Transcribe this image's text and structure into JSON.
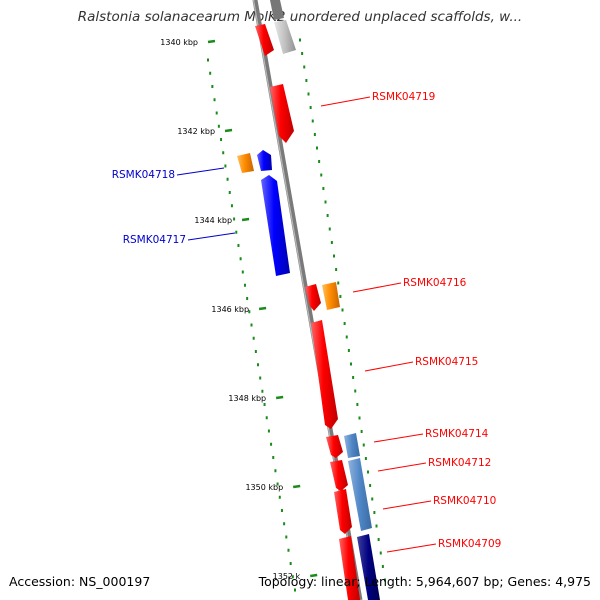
{
  "title": "Ralstonia solanacearum MolK2 unordered unplaced scaffolds, w...",
  "footer": {
    "accession": "Accession: NS_000197",
    "summary": "Topology: linear; Length: 5,964,607 bp; Genes: 4,975"
  },
  "colors": {
    "forward_gene": "#ff0000",
    "reverse_gene": "#0000ff",
    "orange_feature": "#ff8c00",
    "steelblue_feature": "#4f86c6",
    "navy_feature": "#000080",
    "gray_feature": "#c0c0c0",
    "backbone": "#808080",
    "tick": "#1a8c1a",
    "forward_label": "#ff0000",
    "reverse_label": "#0000cc"
  },
  "ruler": [
    {
      "label": "1340 kbp"
    },
    {
      "label": "1342 kbp"
    },
    {
      "label": "1344 kbp"
    },
    {
      "label": "1346 kbp"
    },
    {
      "label": "1348 kbp"
    },
    {
      "label": "1350 kbp"
    },
    {
      "label": "1352 k"
    }
  ],
  "gene_labels": [
    {
      "text": "RSMK04719",
      "strand": "forward"
    },
    {
      "text": "RSMK04718",
      "strand": "reverse"
    },
    {
      "text": "RSMK04717",
      "strand": "reverse"
    },
    {
      "text": "RSMK04716",
      "strand": "forward"
    },
    {
      "text": "RSMK04715",
      "strand": "forward"
    },
    {
      "text": "RSMK04714",
      "strand": "forward"
    },
    {
      "text": "RSMK04712",
      "strand": "forward"
    },
    {
      "text": "RSMK04710",
      "strand": "forward"
    },
    {
      "text": "RSMK04709",
      "strand": "forward"
    }
  ]
}
